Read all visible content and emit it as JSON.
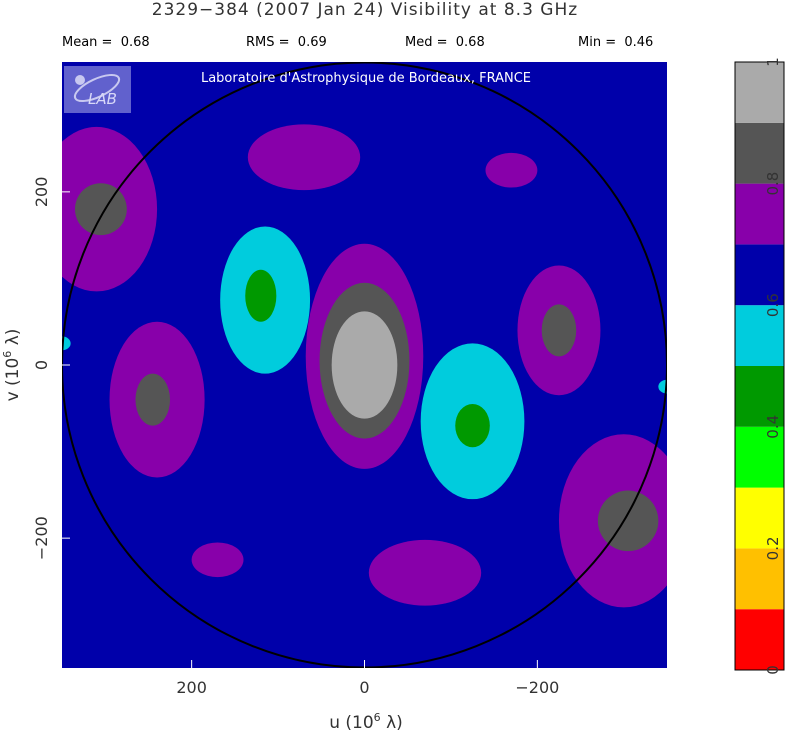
{
  "chart_data": {
    "type": "heatmap",
    "title": "2329−384  (2007 Jan 24)   Visibility at  8.3 GHz",
    "stats": [
      {
        "label": "Mean =",
        "value": "0.68"
      },
      {
        "label": "RMS =",
        "value": "0.69"
      },
      {
        "label": "Med =",
        "value": "0.68"
      },
      {
        "label": "Min =",
        "value": "0.46"
      }
    ],
    "watermark": "Laboratoire d'Astrophysique de Bordeaux, FRANCE",
    "logo_text": "LAB",
    "xlabel": "u  (10",
    "xlabel_exp": "6",
    "xlabel_unit": " λ)",
    "ylabel": "v  (10",
    "ylabel_exp": "6",
    "ylabel_unit": " λ)",
    "xlim": [
      350,
      -350
    ],
    "ylim": [
      -350,
      350
    ],
    "x_ticks": [
      {
        "value": 200,
        "label": "200"
      },
      {
        "value": 0,
        "label": "0"
      },
      {
        "value": -200,
        "label": "−200"
      }
    ],
    "y_ticks": [
      {
        "value": 200,
        "label": "200"
      },
      {
        "value": 0,
        "label": "0"
      },
      {
        "value": -200,
        "label": "−200"
      }
    ],
    "circle_radius": 350,
    "colorbar": {
      "min": 0,
      "max": 1,
      "levels": [
        {
          "from": 0.0,
          "to": 0.1,
          "color": "#ff0000"
        },
        {
          "from": 0.1,
          "to": 0.2,
          "color": "#ffc000"
        },
        {
          "from": 0.2,
          "to": 0.3,
          "color": "#ffff00"
        },
        {
          "from": 0.3,
          "to": 0.4,
          "color": "#00ff00"
        },
        {
          "from": 0.4,
          "to": 0.5,
          "color": "#009900"
        },
        {
          "from": 0.5,
          "to": 0.6,
          "color": "#00ccdd"
        },
        {
          "from": 0.6,
          "to": 0.7,
          "color": "#0000aa"
        },
        {
          "from": 0.7,
          "to": 0.8,
          "color": "#8800aa"
        },
        {
          "from": 0.8,
          "to": 0.9,
          "color": "#555555"
        },
        {
          "from": 0.9,
          "to": 1.0,
          "color": "#aaaaaa"
        }
      ],
      "ticks": [
        {
          "value": 0,
          "label": "0"
        },
        {
          "value": 0.2,
          "label": "0.2"
        },
        {
          "value": 0.4,
          "label": "0.4"
        },
        {
          "value": 0.6,
          "label": "0.6"
        },
        {
          "value": 0.8,
          "label": "0.8"
        },
        {
          "value": 1,
          "label": "1"
        }
      ]
    },
    "background_color": "#0000aa",
    "regions": [
      {
        "u": 0,
        "v": 10,
        "ru": 68,
        "rv": 130,
        "level": 0.75
      },
      {
        "u": 0,
        "v": 5,
        "ru": 52,
        "rv": 90,
        "level": 0.85
      },
      {
        "u": 0,
        "v": 0,
        "ru": 38,
        "rv": 62,
        "level": 0.95
      },
      {
        "u": 115,
        "v": 75,
        "ru": 52,
        "rv": 85,
        "level": 0.55
      },
      {
        "u": 120,
        "v": 80,
        "ru": 18,
        "rv": 30,
        "level": 0.45
      },
      {
        "u": -125,
        "v": -65,
        "ru": 60,
        "rv": 90,
        "level": 0.55
      },
      {
        "u": -125,
        "v": -70,
        "ru": 20,
        "rv": 25,
        "level": 0.45
      },
      {
        "u": 310,
        "v": 180,
        "ru": 70,
        "rv": 95,
        "level": 0.75
      },
      {
        "u": 305,
        "v": 180,
        "ru": 30,
        "rv": 30,
        "level": 0.85
      },
      {
        "u": 240,
        "v": -40,
        "ru": 55,
        "rv": 90,
        "level": 0.75
      },
      {
        "u": 245,
        "v": -40,
        "ru": 20,
        "rv": 30,
        "level": 0.85
      },
      {
        "u": -225,
        "v": 40,
        "ru": 48,
        "rv": 75,
        "level": 0.75
      },
      {
        "u": -225,
        "v": 40,
        "ru": 20,
        "rv": 30,
        "level": 0.85
      },
      {
        "u": -300,
        "v": -180,
        "ru": 75,
        "rv": 100,
        "level": 0.75
      },
      {
        "u": -305,
        "v": -180,
        "ru": 35,
        "rv": 35,
        "level": 0.85
      },
      {
        "u": 70,
        "v": 240,
        "ru": 65,
        "rv": 38,
        "level": 0.75
      },
      {
        "u": -70,
        "v": -240,
        "ru": 65,
        "rv": 38,
        "level": 0.75
      },
      {
        "u": -170,
        "v": 225,
        "ru": 30,
        "rv": 20,
        "level": 0.75
      },
      {
        "u": 170,
        "v": -225,
        "ru": 30,
        "rv": 20,
        "level": 0.75
      },
      {
        "u": 350,
        "v": 25,
        "ru": 10,
        "rv": 8,
        "level": 0.55
      },
      {
        "u": -350,
        "v": -25,
        "ru": 10,
        "rv": 8,
        "level": 0.55
      }
    ]
  }
}
